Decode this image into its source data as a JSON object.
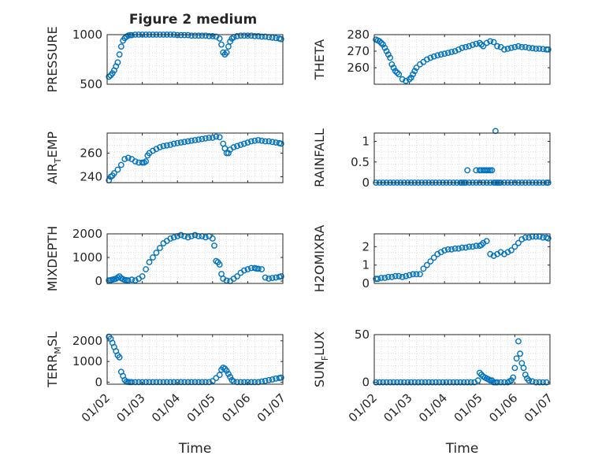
{
  "figure_title": "Figure 2 medium",
  "x_tick_labels": [
    "01/02",
    "01/03",
    "01/04",
    "01/05",
    "01/06",
    "01/07"
  ],
  "xlabel": "Time",
  "colors": {
    "marker": "#0072BD",
    "axis": "#262626",
    "grid": "#c8c8c8"
  },
  "chart_data": [
    {
      "type": "scatter",
      "ylabel_main": "PRESSURE",
      "ylabel_sub": "",
      "ylabel_tail": "",
      "ylim": [
        500,
        1000
      ],
      "yticks": [
        500,
        1000
      ],
      "ytick_labels": [
        "500",
        "1000"
      ],
      "xlim": [
        1,
        6
      ],
      "grid": true,
      "x": [
        1.05,
        1.1,
        1.15,
        1.2,
        1.25,
        1.3,
        1.35,
        1.4,
        1.45,
        1.5,
        1.55,
        1.6,
        1.65,
        1.7,
        1.8,
        1.9,
        2.0,
        2.1,
        2.2,
        2.3,
        2.4,
        2.5,
        2.6,
        2.7,
        2.8,
        2.9,
        3.0,
        3.1,
        3.2,
        3.3,
        3.4,
        3.5,
        3.6,
        3.7,
        3.8,
        3.9,
        4.0,
        4.1,
        4.2,
        4.25,
        4.3,
        4.35,
        4.4,
        4.45,
        4.5,
        4.55,
        4.6,
        4.7,
        4.8,
        4.9,
        5.0,
        5.1,
        5.2,
        5.3,
        5.4,
        5.5,
        5.6,
        5.7,
        5.8,
        5.9,
        5.95
      ],
      "y": [
        575,
        590,
        610,
        640,
        680,
        720,
        800,
        880,
        940,
        965,
        980,
        990,
        995,
        995,
        1000,
        1000,
        1000,
        1000,
        1000,
        1000,
        1000,
        1000,
        1000,
        1000,
        1000,
        1000,
        995,
        995,
        995,
        995,
        990,
        990,
        990,
        990,
        990,
        985,
        985,
        980,
        960,
        900,
        820,
        800,
        820,
        880,
        930,
        960,
        975,
        985,
        990,
        990,
        990,
        990,
        985,
        985,
        980,
        980,
        975,
        970,
        965,
        960,
        955
      ]
    },
    {
      "type": "scatter",
      "ylabel_main": "THETA",
      "ylabel_sub": "",
      "ylabel_tail": "",
      "ylim": [
        250,
        280
      ],
      "yticks": [
        260,
        270,
        280
      ],
      "ytick_labels": [
        "260",
        "270",
        "280"
      ],
      "xlim": [
        1,
        6
      ],
      "grid": true,
      "x": [
        1.05,
        1.1,
        1.15,
        1.2,
        1.25,
        1.3,
        1.35,
        1.4,
        1.45,
        1.5,
        1.55,
        1.6,
        1.65,
        1.7,
        1.8,
        1.9,
        2.0,
        2.05,
        2.1,
        2.15,
        2.2,
        2.3,
        2.4,
        2.5,
        2.6,
        2.7,
        2.8,
        2.9,
        3.0,
        3.1,
        3.2,
        3.3,
        3.4,
        3.5,
        3.6,
        3.7,
        3.8,
        3.9,
        4.0,
        4.05,
        4.1,
        4.2,
        4.3,
        4.4,
        4.5,
        4.6,
        4.7,
        4.8,
        4.9,
        5.0,
        5.1,
        5.2,
        5.3,
        5.4,
        5.5,
        5.6,
        5.7,
        5.8,
        5.9,
        5.95
      ],
      "y": [
        277,
        276.5,
        276,
        275,
        274,
        272,
        270,
        268,
        266,
        262,
        260,
        258,
        257,
        256,
        253,
        252,
        253,
        254,
        256,
        258,
        260,
        262,
        263.5,
        265,
        266,
        266.8,
        267.5,
        268,
        268.5,
        269,
        269.5,
        270,
        271,
        272,
        272.5,
        273,
        273.8,
        274.5,
        275,
        274,
        273,
        275,
        276,
        275.5,
        273,
        272.5,
        271,
        271.5,
        272,
        272.5,
        273,
        272.5,
        272.5,
        272,
        271.8,
        271.5,
        271.5,
        271.3,
        271,
        271
      ]
    },
    {
      "type": "scatter",
      "ylabel_main": "AIR",
      "ylabel_sub": "T",
      "ylabel_tail": "EMP",
      "ylim": [
        235,
        277
      ],
      "yticks": [
        240,
        260
      ],
      "ytick_labels": [
        "240",
        "260"
      ],
      "xlim": [
        1,
        6
      ],
      "grid": true,
      "x": [
        1.05,
        1.1,
        1.15,
        1.2,
        1.3,
        1.4,
        1.5,
        1.6,
        1.7,
        1.8,
        1.9,
        2.0,
        2.05,
        2.1,
        2.15,
        2.2,
        2.3,
        2.4,
        2.5,
        2.6,
        2.7,
        2.8,
        2.9,
        3.0,
        3.1,
        3.2,
        3.3,
        3.4,
        3.5,
        3.6,
        3.7,
        3.8,
        3.9,
        4.0,
        4.1,
        4.2,
        4.3,
        4.35,
        4.4,
        4.45,
        4.5,
        4.6,
        4.7,
        4.8,
        4.9,
        5.0,
        5.1,
        5.2,
        5.3,
        5.4,
        5.5,
        5.6,
        5.7,
        5.8,
        5.9,
        5.95
      ],
      "y": [
        237,
        240,
        241,
        243,
        246,
        250,
        255,
        256,
        255,
        253,
        252,
        252,
        252,
        253,
        258,
        260,
        262,
        263.5,
        265,
        266,
        266.5,
        267,
        268,
        268.5,
        269,
        269.5,
        270,
        270.5,
        271,
        271.5,
        272,
        272.5,
        273,
        273,
        274,
        273.5,
        268,
        264,
        260,
        260,
        263,
        265,
        266,
        267,
        268,
        269,
        270,
        270.5,
        271,
        270.5,
        270,
        270,
        269.5,
        269,
        268.5,
        268
      ]
    },
    {
      "type": "scatter",
      "ylabel_main": "RAINFALL",
      "ylabel_sub": "",
      "ylabel_tail": "",
      "ylim": [
        0,
        1.2
      ],
      "yticks": [
        0,
        0.5,
        1
      ],
      "ytick_labels": [
        "0",
        "0.5",
        "1"
      ],
      "xlim": [
        1,
        6
      ],
      "grid": true,
      "x": [
        1.05,
        1.15,
        1.25,
        1.35,
        1.45,
        1.55,
        1.65,
        1.75,
        1.85,
        1.95,
        2.05,
        2.15,
        2.25,
        2.35,
        2.45,
        2.55,
        2.65,
        2.75,
        2.85,
        2.95,
        3.05,
        3.15,
        3.25,
        3.35,
        3.45,
        3.5,
        3.55,
        3.6,
        3.7,
        3.8,
        3.9,
        4.0,
        4.1,
        4.2,
        4.3,
        4.4,
        4.45,
        4.5,
        4.55,
        4.6,
        4.7,
        4.8,
        4.9,
        5.0,
        5.1,
        5.2,
        5.3,
        5.4,
        5.5,
        5.6,
        5.7,
        5.8,
        5.9,
        5.95,
        3.65,
        3.9,
        4.0,
        4.05,
        4.1,
        4.15,
        4.2,
        4.25,
        4.3,
        4.35,
        4.45
      ],
      "y": [
        0,
        0,
        0,
        0,
        0,
        0,
        0,
        0,
        0,
        0,
        0,
        0,
        0,
        0,
        0,
        0,
        0,
        0,
        0,
        0,
        0,
        0,
        0,
        0,
        0,
        0,
        0,
        0,
        0,
        0,
        0,
        0,
        0,
        0,
        0,
        0,
        0,
        0,
        0,
        0,
        0,
        0,
        0,
        0,
        0,
        0,
        0,
        0,
        0,
        0,
        0,
        0,
        0,
        0,
        0.3,
        0.3,
        0.3,
        0.3,
        0.3,
        0.3,
        0.3,
        0.3,
        0.3,
        0.3,
        1.25
      ]
    },
    {
      "type": "scatter",
      "ylabel_main": "MIXDEPTH",
      "ylabel_sub": "",
      "ylabel_tail": "",
      "ylim": [
        -100,
        2000
      ],
      "yticks": [
        0,
        1000,
        2000
      ],
      "ytick_labels": [
        "0",
        "1000",
        "2000"
      ],
      "xlim": [
        1,
        6
      ],
      "grid": true,
      "x": [
        1.05,
        1.1,
        1.15,
        1.2,
        1.25,
        1.3,
        1.35,
        1.4,
        1.45,
        1.5,
        1.55,
        1.6,
        1.7,
        1.8,
        1.9,
        2.0,
        2.1,
        2.2,
        2.3,
        2.4,
        2.5,
        2.6,
        2.7,
        2.8,
        2.9,
        3.0,
        3.1,
        3.2,
        3.3,
        3.4,
        3.5,
        3.6,
        3.7,
        3.8,
        3.9,
        4.0,
        4.05,
        4.1,
        4.15,
        4.2,
        4.25,
        4.3,
        4.4,
        4.5,
        4.6,
        4.7,
        4.8,
        4.9,
        5.0,
        5.1,
        5.2,
        5.25,
        5.3,
        5.4,
        5.5,
        5.6,
        5.7,
        5.8,
        5.9,
        5.95
      ],
      "y": [
        30,
        40,
        60,
        80,
        100,
        150,
        200,
        120,
        80,
        50,
        40,
        30,
        60,
        30,
        100,
        200,
        500,
        800,
        1000,
        1200,
        1400,
        1600,
        1700,
        1800,
        1850,
        1900,
        1950,
        1900,
        1850,
        1900,
        1950,
        1900,
        1900,
        1850,
        1900,
        1800,
        1500,
        850,
        800,
        700,
        300,
        100,
        20,
        0,
        100,
        200,
        350,
        450,
        500,
        550,
        550,
        530,
        520,
        500,
        150,
        100,
        130,
        150,
        180,
        200
      ]
    },
    {
      "type": "scatter",
      "ylabel_main": "H2OMIXRA",
      "ylabel_sub": "",
      "ylabel_tail": "",
      "ylim": [
        0,
        2.7
      ],
      "yticks": [
        0,
        1,
        2
      ],
      "ytick_labels": [
        "0",
        "1",
        "2"
      ],
      "xlim": [
        1,
        6
      ],
      "grid": true,
      "x": [
        1.05,
        1.1,
        1.2,
        1.3,
        1.4,
        1.5,
        1.6,
        1.7,
        1.8,
        1.9,
        2.0,
        2.1,
        2.2,
        2.3,
        2.4,
        2.5,
        2.6,
        2.7,
        2.8,
        2.9,
        3.0,
        3.1,
        3.2,
        3.3,
        3.4,
        3.5,
        3.6,
        3.7,
        3.8,
        3.9,
        4.0,
        4.05,
        4.1,
        4.2,
        4.3,
        4.4,
        4.5,
        4.6,
        4.7,
        4.8,
        4.9,
        5.0,
        5.1,
        5.2,
        5.3,
        5.4,
        5.5,
        5.6,
        5.7,
        5.8,
        5.9,
        5.95
      ],
      "y": [
        0.25,
        0.25,
        0.3,
        0.3,
        0.35,
        0.35,
        0.4,
        0.4,
        0.35,
        0.4,
        0.45,
        0.5,
        0.5,
        0.5,
        0.8,
        1.0,
        1.2,
        1.4,
        1.6,
        1.7,
        1.8,
        1.85,
        1.85,
        1.9,
        1.9,
        1.95,
        1.95,
        2.0,
        2.0,
        2.05,
        2.05,
        2.1,
        2.2,
        2.3,
        1.6,
        1.5,
        1.6,
        1.7,
        1.6,
        1.7,
        1.8,
        2.0,
        2.2,
        2.4,
        2.5,
        2.5,
        2.55,
        2.55,
        2.55,
        2.5,
        2.5,
        2.45
      ]
    },
    {
      "type": "scatter",
      "ylabel_main": "TERR",
      "ylabel_sub": "M",
      "ylabel_tail": "SL",
      "ylim": [
        -100,
        2300
      ],
      "yticks": [
        0,
        1000,
        2000
      ],
      "ytick_labels": [
        "0",
        "1000",
        "2000"
      ],
      "xlim": [
        1,
        6
      ],
      "grid": true,
      "x": [
        1.05,
        1.1,
        1.15,
        1.2,
        1.25,
        1.3,
        1.35,
        1.4,
        1.45,
        1.5,
        1.55,
        1.6,
        1.65,
        1.7,
        1.8,
        1.9,
        2.0,
        2.1,
        2.2,
        2.3,
        2.4,
        2.5,
        2.6,
        2.7,
        2.8,
        2.9,
        3.0,
        3.1,
        3.2,
        3.3,
        3.4,
        3.5,
        3.6,
        3.7,
        3.8,
        3.9,
        4.0,
        4.1,
        4.2,
        4.25,
        4.3,
        4.35,
        4.4,
        4.45,
        4.5,
        4.55,
        4.6,
        4.7,
        4.8,
        4.9,
        5.0,
        5.1,
        5.2,
        5.3,
        5.4,
        5.5,
        5.6,
        5.7,
        5.8,
        5.9,
        5.95
      ],
      "y": [
        2200,
        2100,
        1900,
        1700,
        1500,
        1300,
        1200,
        500,
        300,
        100,
        20,
        10,
        0,
        0,
        0,
        0,
        0,
        0,
        0,
        0,
        0,
        0,
        0,
        0,
        0,
        0,
        0,
        0,
        0,
        0,
        0,
        0,
        0,
        0,
        0,
        0,
        50,
        200,
        350,
        600,
        700,
        650,
        550,
        400,
        250,
        100,
        30,
        0,
        0,
        0,
        0,
        0,
        0,
        0,
        30,
        60,
        100,
        130,
        170,
        200,
        220
      ]
    },
    {
      "type": "scatter",
      "ylabel_main": "SUN",
      "ylabel_sub": "F",
      "ylabel_tail": "LUX",
      "ylim": [
        -2,
        50
      ],
      "yticks": [
        0,
        50
      ],
      "ytick_labels": [
        "0",
        "50"
      ],
      "xlim": [
        1,
        6
      ],
      "grid": true,
      "x": [
        1.05,
        1.15,
        1.25,
        1.35,
        1.45,
        1.55,
        1.65,
        1.75,
        1.85,
        1.95,
        2.05,
        2.15,
        2.25,
        2.35,
        2.45,
        2.55,
        2.65,
        2.75,
        2.85,
        2.95,
        3.05,
        3.15,
        3.25,
        3.35,
        3.45,
        3.55,
        3.65,
        3.75,
        3.85,
        3.95,
        4.0,
        4.05,
        4.1,
        4.15,
        4.2,
        4.25,
        4.3,
        4.35,
        4.4,
        4.45,
        4.5,
        4.6,
        4.7,
        4.8,
        4.85,
        4.9,
        4.95,
        5.0,
        5.05,
        5.1,
        5.15,
        5.2,
        5.25,
        5.3,
        5.35,
        5.4,
        5.5,
        5.6,
        5.7,
        5.8,
        5.9
      ],
      "y": [
        0,
        0,
        0,
        0,
        0,
        0,
        0,
        0,
        0,
        0,
        0,
        0,
        0,
        0,
        0,
        0,
        0,
        0,
        0,
        0,
        0,
        0,
        0,
        0,
        0,
        0,
        0,
        0,
        0,
        2,
        10,
        8,
        6,
        5,
        4,
        3,
        2,
        2,
        0,
        0,
        0,
        0,
        0,
        0,
        1,
        2,
        5,
        15,
        25,
        43,
        30,
        20,
        15,
        8,
        4,
        2,
        1,
        0,
        0,
        0,
        0
      ]
    }
  ]
}
